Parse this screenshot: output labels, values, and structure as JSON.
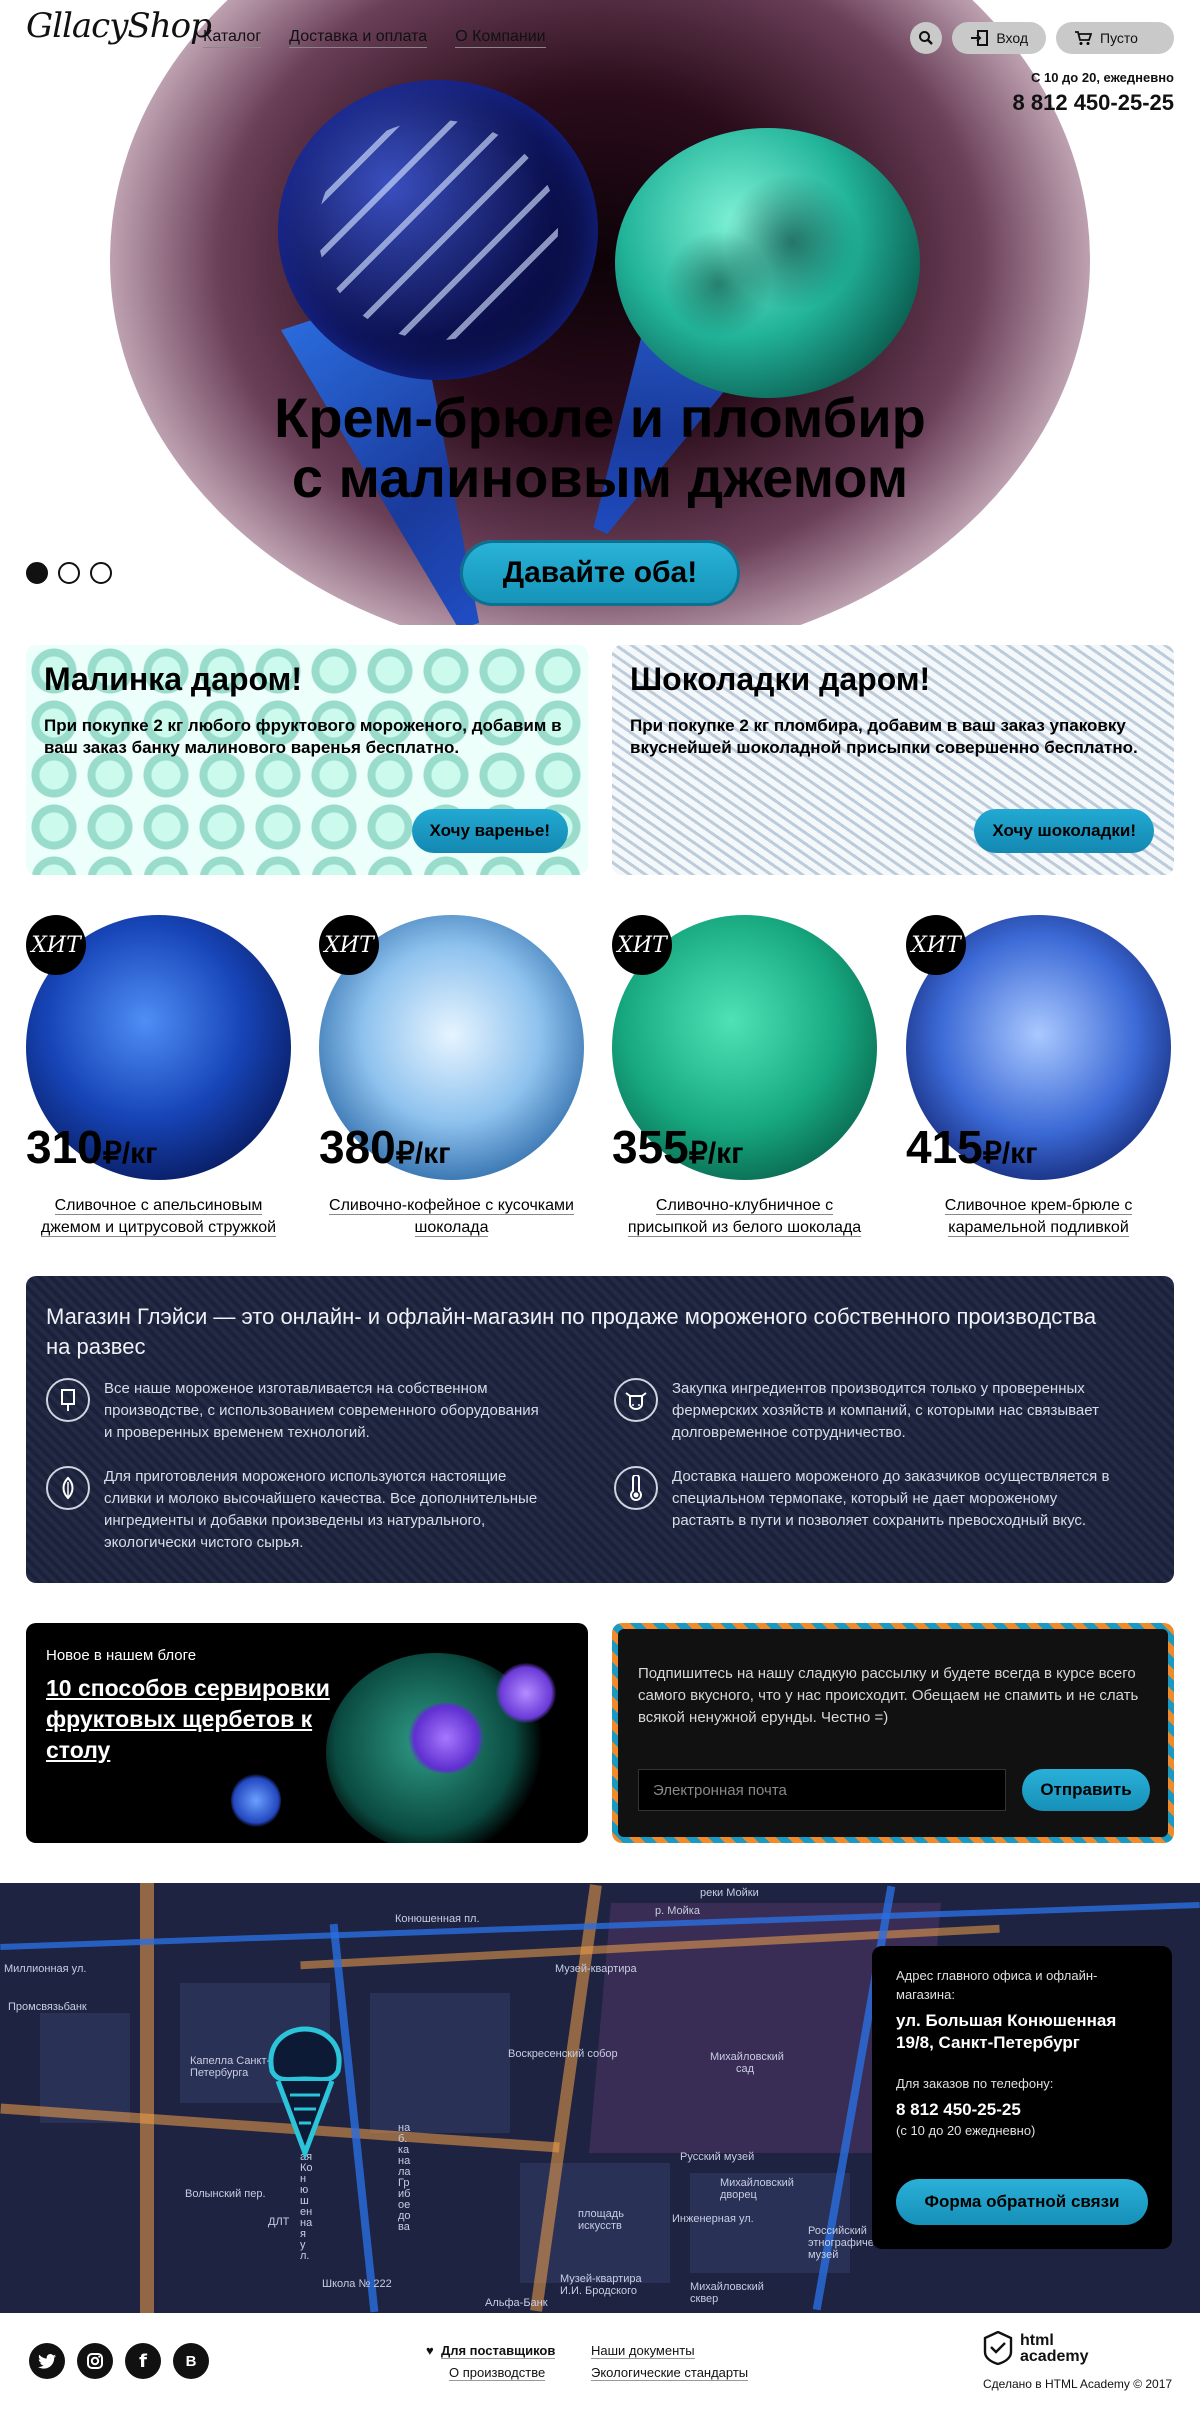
{
  "header": {
    "logo": "GllacyShop",
    "nav": [
      "Каталог",
      "Доставка и оплата",
      "О Компании"
    ],
    "login": "Вход",
    "cart": "Пусто",
    "hours": "С 10 до 20, ежедневно",
    "phone": "8 812 450-25-25"
  },
  "hero": {
    "title_line1": "Крем-брюле и пломбир",
    "title_line2": "с малиновым джемом",
    "cta": "Давайте оба!",
    "slides_total": 3,
    "slide_active": 1
  },
  "promos": [
    {
      "title": "Малинка даром!",
      "text": "При покупке 2 кг любого фруктового мороженого, добавим в ваш заказ банку малинового варенья бесплатно.",
      "button": "Хочу варенье!"
    },
    {
      "title": "Шоколадки даром!",
      "text": "При покупке 2 кг пломбира, добавим в ваш заказ упаковку вкуснейшей шоколадной присыпки совершенно бесплатно.",
      "button": "Хочу шоколадки!"
    }
  ],
  "products": [
    {
      "badge": "ХИТ",
      "price": "310",
      "unit": "₽/кг",
      "name_line1": "Сливочное с апельсиновым",
      "name_line2": "джемом и цитрусовой стружкой"
    },
    {
      "badge": "ХИТ",
      "price": "380",
      "unit": "₽/кг",
      "name_line1": "Сливочно-кофейное с кусочками",
      "name_line2": "шоколада"
    },
    {
      "badge": "ХИТ",
      "price": "355",
      "unit": "₽/кг",
      "name_line1": "Сливочно-клубничное с",
      "name_line2": "присыпкой из белого шоколада"
    },
    {
      "badge": "ХИТ",
      "price": "415",
      "unit": "₽/кг",
      "name_line1": "Сливочное крем-брюле с",
      "name_line2": "карамельной подливкой"
    }
  ],
  "about": {
    "title": "Магазин Глэйси — это онлайн- и офлайн-магазин по продаже мороженого собственного производства на развес",
    "features": [
      {
        "icon": "popsicle-icon",
        "text": "Все наше мороженое изготавливается на собственном производстве, с использованием современного оборудования и проверенных временем технологий."
      },
      {
        "icon": "cow-icon",
        "text": "Закупка ингредиентов  производится только у проверенных фермерских хозяйств и компаний, с которыми нас связывает долговременное сотрудничество."
      },
      {
        "icon": "leaf-icon",
        "text": "Для приготовления мороженого используются настоящие сливки и молоко высочайшего качества. Все дополнительные ингредиенты и добавки произведены из натурального, экологически чистого сырья."
      },
      {
        "icon": "thermometer-icon",
        "text": "Доставка нашего мороженого до заказчиков осуществляется в специальном термопаке, который не дает мороженому растаять в пути и позволяет сохранить превосходный вкус."
      }
    ]
  },
  "blog": {
    "kicker": "Новое в нашем блоге",
    "title": "10 способов сервировки фруктовых щербетов к столу"
  },
  "subscribe": {
    "text": "Подпишитесь на нашу сладкую рассылку и будете всегда в курсе всего самого вкусного, что у нас происходит. Обещаем не спамить и не слать всякой ненужной ерунды. Честно =)",
    "placeholder": "Электронная почта",
    "button": "Отправить"
  },
  "map": {
    "labels": [
      "реки Мойки",
      "Конюшенная пл.",
      "р. Мойка",
      "Музей-квартира",
      "Михайловский сад",
      "Воскресенский собор",
      "Капелла Санкт-Петербурга",
      "Волынский пер.",
      "Русский музей",
      "Михайловский дворец",
      "площадь искусств",
      "Инженерная ул.",
      "Российский этнографический музей",
      "Музей-квартира И.И. Бродского",
      "Михайловский сквер",
      "Альфа-Банк",
      "Школа № 222",
      "ДЛТ",
      "Промсвязьбанк",
      "наб. канала Грибоедова",
      "Большая Конюшенная ул.",
      "Миллионная ул."
    ],
    "card": {
      "addr_label": "Адрес главного офиса и офлайн-магазина:",
      "addr": "ул. Большая Конюшенная 19/8, Санкт-Петербург",
      "phone_label": "Для заказов по телефону:",
      "phone": "8 812 450-25-25",
      "phone_note": "(с 10 до 20 ежедневно)",
      "button": "Форма обратной связи"
    }
  },
  "footer": {
    "social": [
      "twitter",
      "instagram",
      "facebook",
      "vk"
    ],
    "suppliers": "Для поставщиков",
    "production": "О производстве",
    "docs": "Наши документы",
    "eco": "Экологические стандарты",
    "academy": "html academy",
    "made": "Сделано в HTML Academy © 2017"
  }
}
